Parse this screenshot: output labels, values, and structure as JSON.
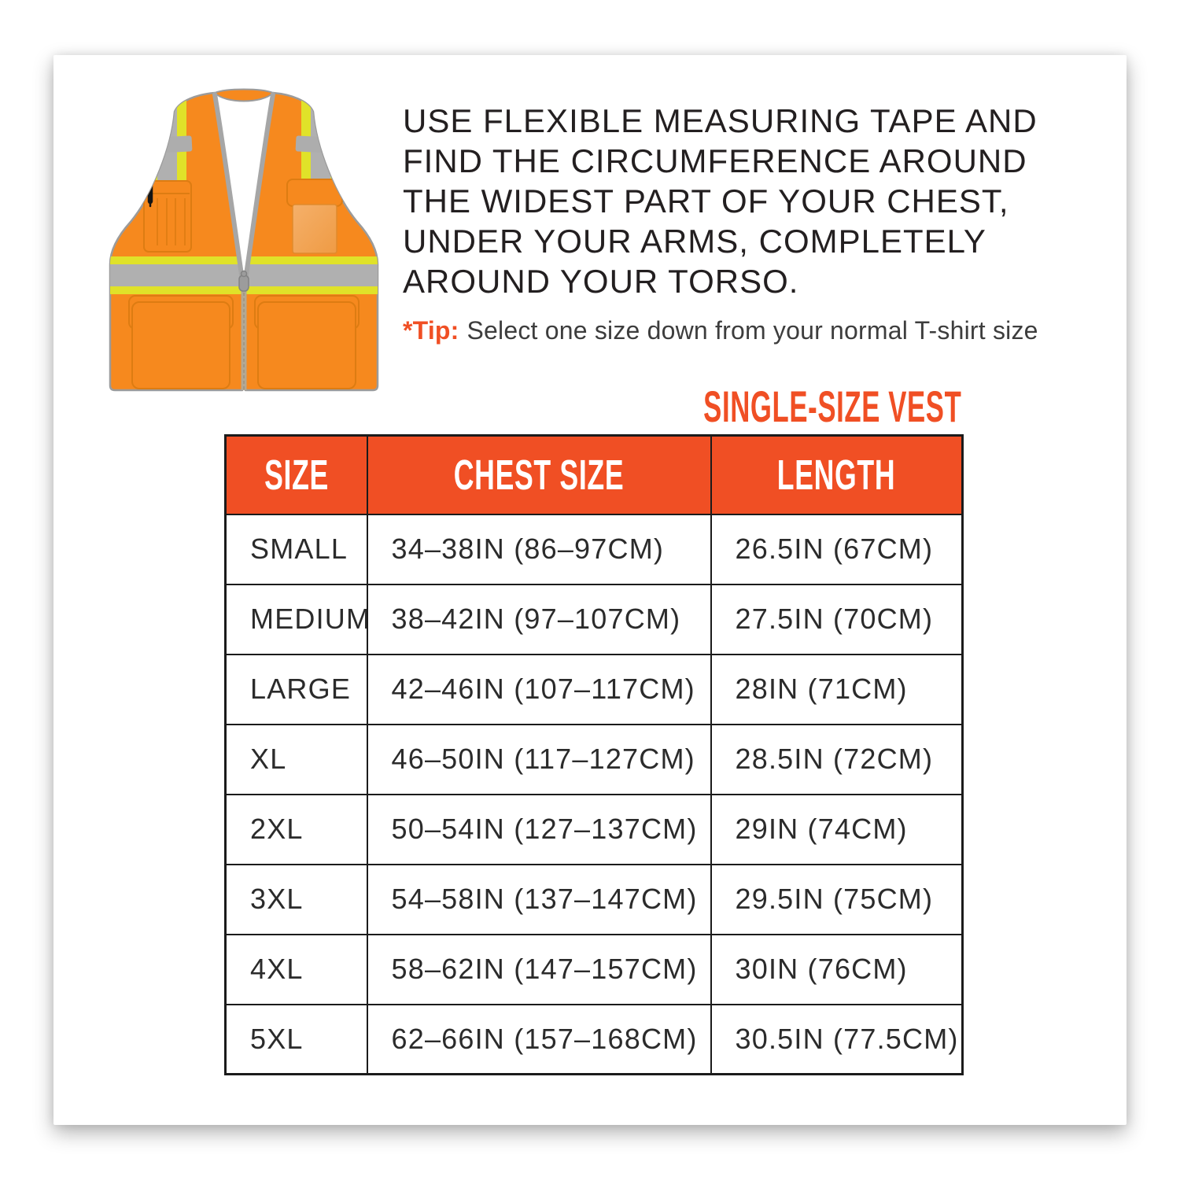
{
  "card": {
    "intro_text": "USE FLEXIBLE MEASURING TAPE AND\nFIND THE CIRCUMFERENCE AROUND\nTHE WIDEST PART OF YOUR CHEST,\nUNDER YOUR ARMS, COMPLETELY\nAROUND YOUR TORSO.",
    "tip_label": "*Tip:",
    "tip_text": "Select one size down from your normal T-shirt size",
    "table_title": "SINGLE-SIZE VEST"
  },
  "size_table": {
    "headers": [
      "SIZE",
      "CHEST SIZE",
      "LENGTH"
    ],
    "rows": [
      {
        "size": "SMALL",
        "chest": "34–38IN (86–97CM)",
        "length": "26.5IN (67CM)"
      },
      {
        "size": "MEDIUM",
        "chest": "38–42IN (97–107CM)",
        "length": "27.5IN (70CM)"
      },
      {
        "size": "LARGE",
        "chest": "42–46IN (107–117CM)",
        "length": "28IN (71CM)"
      },
      {
        "size": "XL",
        "chest": "46–50IN (117–127CM)",
        "length": "28.5IN (72CM)"
      },
      {
        "size": "2XL",
        "chest": "50–54IN (127–137CM)",
        "length": "29IN (74CM)"
      },
      {
        "size": "3XL",
        "chest": "54–58IN (137–147CM)",
        "length": "29.5IN (75CM)"
      },
      {
        "size": "4XL",
        "chest": "58–62IN (147–157CM)",
        "length": "30IN (76CM)"
      },
      {
        "size": "5XL",
        "chest": "62–66IN (157–168CM)",
        "length": "30.5IN (77.5CM)"
      }
    ]
  },
  "vest_icon": "hi-vis-safety-vest",
  "colors": {
    "accent": "#F04F24",
    "vest_orange": "#F6891E",
    "reflective_lime": "#E0E229",
    "reflective_silver": "#B0B0B0",
    "text_dark": "#231F20",
    "table_line": "#1B1B1B"
  }
}
